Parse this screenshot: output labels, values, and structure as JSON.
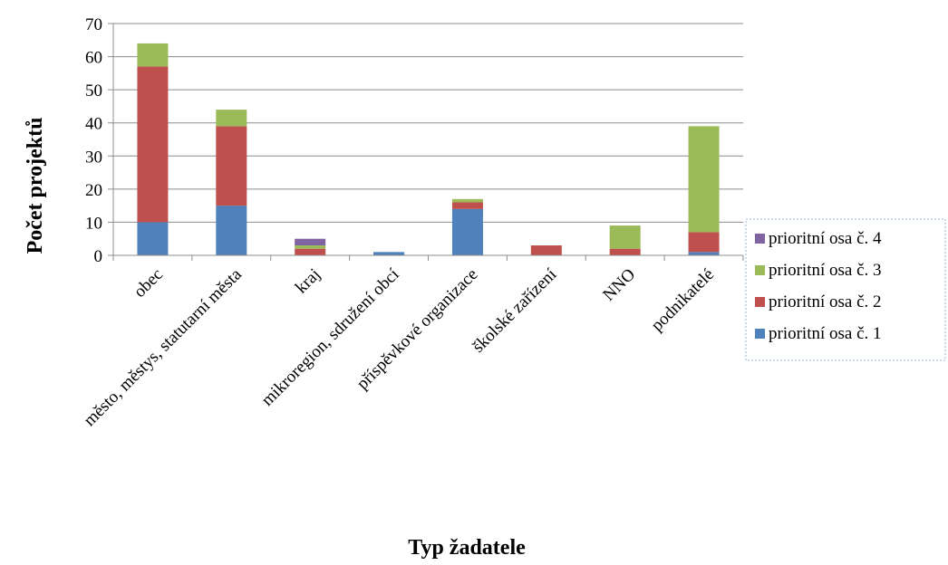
{
  "chart_data": {
    "type": "bar",
    "stacked": true,
    "title": "",
    "xlabel": "Typ žadatele",
    "ylabel": "Počet projektů",
    "ylim": [
      0,
      70
    ],
    "yticks": [
      "0",
      "10",
      "20",
      "30",
      "40",
      "50",
      "60",
      "70"
    ],
    "grid": true,
    "legend_position": "right",
    "categories": [
      "obec",
      "město, městys, statutarní města",
      "kraj",
      "mikroregion, sdružení obcí",
      "příspěvkové organizace",
      "školské zařízení",
      "NNO",
      "podnikatelé"
    ],
    "series": [
      {
        "name": "prioritní osa č. 1",
        "color": "#4f81bd",
        "values": [
          10,
          15,
          0,
          1,
          14,
          0,
          0,
          1
        ]
      },
      {
        "name": "prioritní osa č. 2",
        "color": "#c0504d",
        "values": [
          47,
          24,
          2,
          0,
          2,
          3,
          2,
          6
        ]
      },
      {
        "name": "prioritní osa č. 3",
        "color": "#9bbb59",
        "values": [
          7,
          5,
          1,
          0,
          1,
          0,
          7,
          32
        ]
      },
      {
        "name": "prioritní osa č. 4",
        "color": "#8064a2",
        "values": [
          0,
          0,
          2,
          0,
          0,
          0,
          0,
          0
        ]
      }
    ]
  }
}
